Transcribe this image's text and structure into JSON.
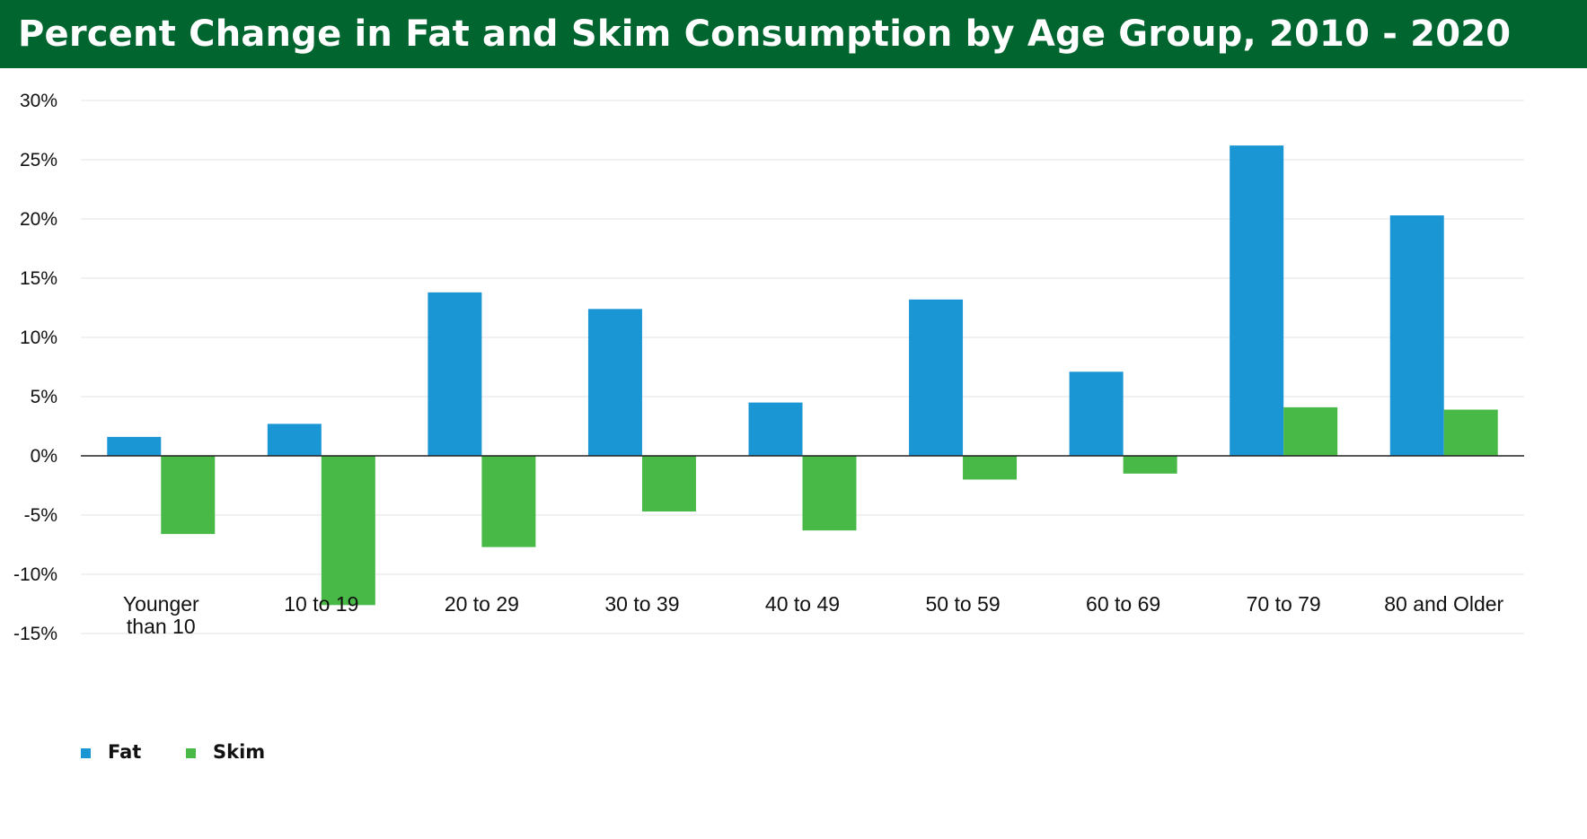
{
  "header": {
    "title": "Percent Change in Fat and Skim Consumption by Age Group, 2010 - 2020"
  },
  "colors": {
    "header_bg": "#00652E",
    "fat": "#1B96D4",
    "skim": "#48B847",
    "grid": "#E3E3E3",
    "axis": "#222222"
  },
  "chart_data": {
    "type": "bar",
    "title": "Percent Change in Fat and Skim Consumption by Age Group, 2010 - 2020",
    "xlabel": "",
    "ylabel": "",
    "categories": [
      [
        "Younger",
        "than 10"
      ],
      [
        "10 to 19"
      ],
      [
        "20 to 29"
      ],
      [
        "30 to 39"
      ],
      [
        "40 to 49"
      ],
      [
        "50 to 59"
      ],
      [
        "60 to 69"
      ],
      [
        "70 to 79"
      ],
      [
        "80 and Older"
      ]
    ],
    "series": [
      {
        "name": "Fat",
        "values": [
          1.6,
          2.7,
          13.8,
          12.4,
          4.5,
          13.2,
          7.1,
          26.2,
          20.3
        ]
      },
      {
        "name": "Skim",
        "values": [
          -6.6,
          -12.6,
          -7.7,
          -4.7,
          -6.3,
          -2.0,
          -1.5,
          4.1,
          3.9
        ]
      }
    ],
    "ylim": [
      -15,
      30
    ],
    "yticks": [
      30,
      25,
      20,
      15,
      10,
      5,
      0,
      -5,
      -10,
      -15
    ],
    "ytick_labels": [
      "30%",
      "25%",
      "20%",
      "15%",
      "10%",
      "5%",
      "0%",
      "-5%",
      "-10%",
      "-15%"
    ],
    "grid": true,
    "legend_position": "bottom-left"
  }
}
